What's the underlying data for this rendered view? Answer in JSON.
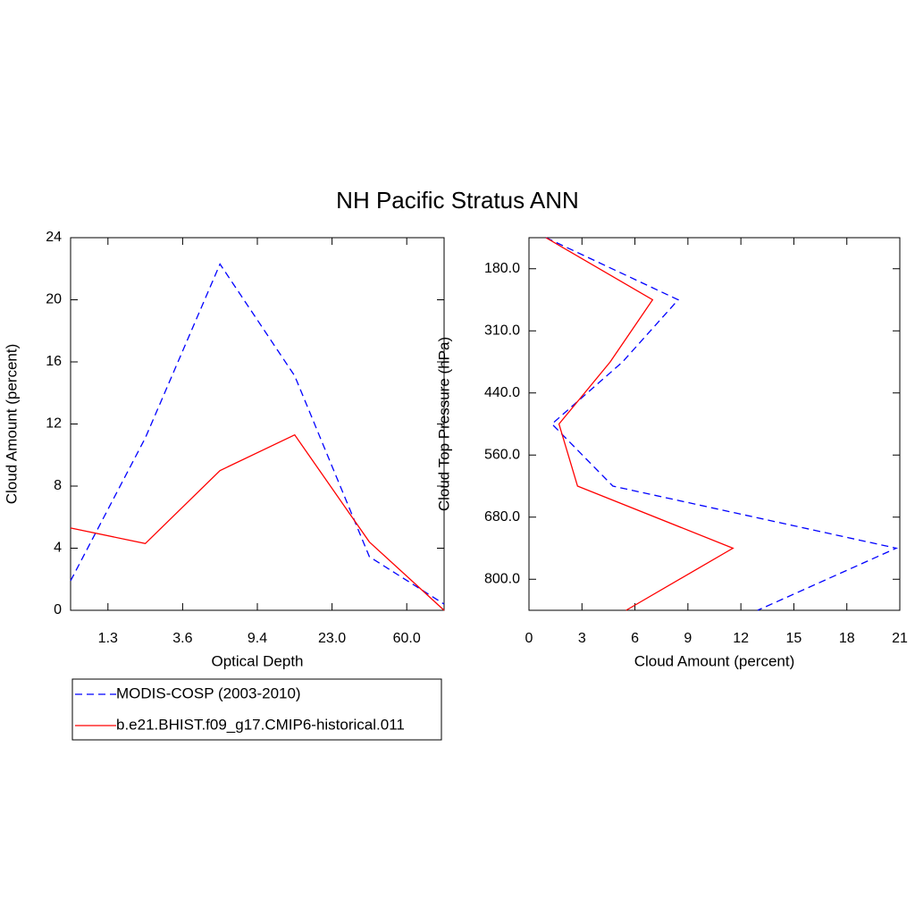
{
  "title": "NH Pacific Stratus ANN",
  "chart_data": [
    {
      "type": "line",
      "orientation": "vertical",
      "x_label": "Optical Depth",
      "y_label": "Cloud Amount (percent)",
      "x": [
        0,
        1,
        2,
        3,
        4,
        5
      ],
      "xlim": [
        0,
        5
      ],
      "xticks": [
        {
          "value": 0.5,
          "label": "1.3"
        },
        {
          "value": 1.5,
          "label": "3.6"
        },
        {
          "value": 2.5,
          "label": "9.4"
        },
        {
          "value": 3.5,
          "label": "23.0"
        },
        {
          "value": 4.5,
          "label": "60.0"
        }
      ],
      "ylim": [
        0,
        24
      ],
      "yticks": [
        0,
        4,
        8,
        12,
        16,
        20,
        24
      ],
      "legend": true,
      "series": [
        {
          "name": "MODIS-COSP (2003-2010)",
          "color": "#0000ff",
          "style": "dashed",
          "values": [
            1.9,
            11.1,
            22.3,
            15.1,
            3.45,
            0.4
          ]
        },
        {
          "name": "b.e21.BHIST.f09_g17.CMIP6-historical.011",
          "color": "#ff0000",
          "style": "solid",
          "values": [
            5.3,
            4.3,
            9.0,
            11.3,
            4.4,
            0.0
          ]
        }
      ]
    },
    {
      "type": "line",
      "orientation": "horizontal",
      "x_label": "Cloud Amount (percent)",
      "y_label": "Cloud Top Pressure (hPa)",
      "y": [
        0,
        1,
        2,
        3,
        4,
        5,
        6
      ],
      "ylim": [
        6,
        0
      ],
      "yticks": [
        {
          "value": 0.5,
          "label": "180.0"
        },
        {
          "value": 1.5,
          "label": "310.0"
        },
        {
          "value": 2.5,
          "label": "440.0"
        },
        {
          "value": 3.5,
          "label": "560.0"
        },
        {
          "value": 4.5,
          "label": "680.0"
        },
        {
          "value": 5.5,
          "label": "800.0"
        }
      ],
      "xlim": [
        0,
        21
      ],
      "xticks": [
        0,
        3,
        6,
        9,
        12,
        15,
        18,
        21
      ],
      "series": [
        {
          "color": "#0000ff",
          "style": "dashed",
          "values": [
            0.96,
            8.45,
            5.3,
            1.3,
            4.75,
            20.8,
            12.95
          ]
        },
        {
          "color": "#ff0000",
          "style": "solid",
          "values": [
            0.96,
            7.0,
            4.6,
            1.7,
            2.75,
            11.55,
            5.5
          ]
        }
      ]
    }
  ]
}
